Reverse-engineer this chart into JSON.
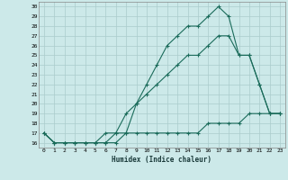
{
  "xlabel": "Humidex (Indice chaleur)",
  "ylabel": "",
  "bg_color": "#cce9e9",
  "line_color": "#1a6b5a",
  "grid_color": "#aacccc",
  "x": [
    0,
    1,
    2,
    3,
    4,
    5,
    6,
    7,
    8,
    9,
    10,
    11,
    12,
    13,
    14,
    15,
    16,
    17,
    18,
    19,
    20,
    21,
    22,
    23
  ],
  "y_max": [
    17,
    16,
    16,
    16,
    16,
    16,
    16,
    17,
    17,
    20,
    22,
    24,
    26,
    27,
    28,
    28,
    29,
    30,
    29,
    25,
    25,
    22,
    19,
    19
  ],
  "y_mean": [
    17,
    16,
    16,
    16,
    16,
    16,
    17,
    17,
    19,
    20,
    21,
    22,
    23,
    24,
    25,
    25,
    26,
    27,
    27,
    25,
    25,
    22,
    19,
    19
  ],
  "y_min": [
    17,
    16,
    16,
    16,
    16,
    16,
    16,
    16,
    17,
    17,
    17,
    17,
    17,
    17,
    17,
    17,
    18,
    18,
    18,
    18,
    19,
    19,
    19,
    19
  ],
  "ylim": [
    15.5,
    30.5
  ],
  "xlim": [
    -0.5,
    23.5
  ],
  "yticks": [
    16,
    17,
    18,
    19,
    20,
    21,
    22,
    23,
    24,
    25,
    26,
    27,
    28,
    29,
    30
  ],
  "xticks": [
    0,
    1,
    2,
    3,
    4,
    5,
    6,
    7,
    8,
    9,
    10,
    11,
    12,
    13,
    14,
    15,
    16,
    17,
    18,
    19,
    20,
    21,
    22,
    23
  ],
  "marker": "+",
  "markersize": 3,
  "linewidth": 0.8
}
